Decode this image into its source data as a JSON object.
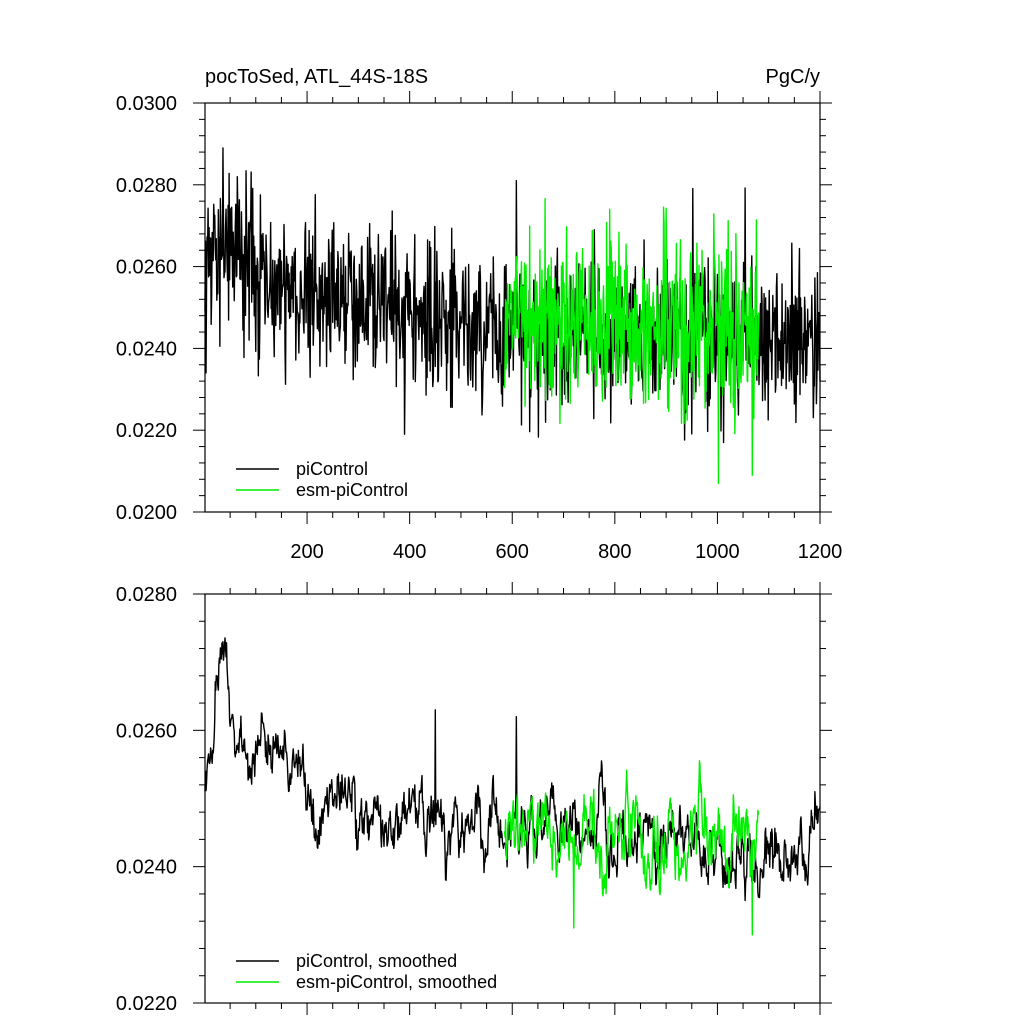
{
  "chart_data": [
    {
      "type": "line",
      "title_left": "pocToSed, ATL_44S-18S",
      "title_right": "PgC/y",
      "xlim": [
        1,
        1200
      ],
      "ylim": [
        0.02,
        0.03
      ],
      "yticks": [
        "0.0200",
        "0.0220",
        "0.0240",
        "0.0260",
        "0.0280",
        "0.0300"
      ],
      "xticks": [
        "200",
        "400",
        "600",
        "800",
        "1000",
        "1200"
      ],
      "legend": {
        "placement": "bottom-left"
      },
      "series": [
        {
          "name": "piControl",
          "color": "#000000",
          "x_range": [
            1,
            1200
          ],
          "trend": [
            [
              1,
              0.0262
            ],
            [
              40,
              0.0262
            ],
            [
              150,
              0.0256
            ],
            [
              300,
              0.0251
            ],
            [
              450,
              0.0249
            ],
            [
              600,
              0.0246
            ],
            [
              900,
              0.0244
            ],
            [
              1200,
              0.0242
            ]
          ],
          "noise_sd": 0.00095,
          "peaks": [
            [
              36,
              0.0289
            ],
            [
              608,
              0.0281
            ],
            [
              3,
              0.0234
            ],
            [
              390,
              0.0219
            ]
          ]
        },
        {
          "name": "esm-piControl",
          "color": "#00ee00",
          "x_range": [
            585,
            1080
          ],
          "trend": [
            [
              585,
              0.0246
            ],
            [
              800,
              0.0246
            ],
            [
              1080,
              0.0245
            ]
          ],
          "noise_sd": 0.0011,
          "peaks": [
            [
              790,
              0.0274
            ],
            [
              1002,
              0.0207
            ],
            [
              1068,
              0.0209
            ]
          ]
        }
      ]
    },
    {
      "type": "line",
      "xlim": [
        1,
        1200
      ],
      "ylim": [
        0.022,
        0.028
      ],
      "yticks": [
        "0.0220",
        "0.0240",
        "0.0260",
        "0.0280"
      ],
      "legend": {
        "placement": "bottom-left"
      },
      "series": [
        {
          "name": "piControl, smoothed",
          "color": "#000000",
          "x_range": [
            1,
            1200
          ],
          "trend": [
            [
              1,
              0.025
            ],
            [
              10,
              0.0258
            ],
            [
              38,
              0.027
            ],
            [
              60,
              0.0258
            ],
            [
              150,
              0.0258
            ],
            [
              200,
              0.025
            ],
            [
              300,
              0.0248
            ],
            [
              400,
              0.0248
            ],
            [
              500,
              0.0246
            ],
            [
              600,
              0.0246
            ],
            [
              800,
              0.0245
            ],
            [
              950,
              0.0244
            ],
            [
              1100,
              0.0241
            ],
            [
              1200,
              0.0243
            ]
          ],
          "noise_sd": 0.00028,
          "peaks": [
            [
              36,
              0.0273
            ],
            [
              608,
              0.0262
            ],
            [
              450,
              0.0263
            ],
            [
              1190,
              0.0251
            ]
          ]
        },
        {
          "name": "esm-piControl, smoothed",
          "color": "#00ee00",
          "x_range": [
            585,
            1080
          ],
          "trend": [
            [
              585,
              0.0246
            ],
            [
              800,
              0.0245
            ],
            [
              1080,
              0.0243
            ]
          ],
          "noise_sd": 0.00036,
          "peaks": [
            [
              720,
              0.0231
            ],
            [
              1068,
              0.023
            ]
          ]
        }
      ]
    }
  ]
}
